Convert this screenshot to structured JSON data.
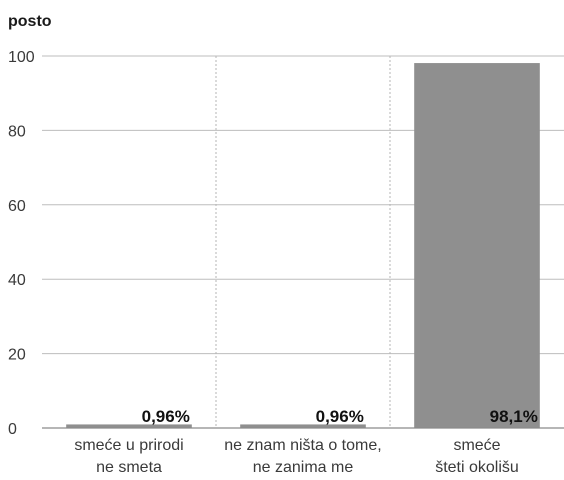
{
  "chart_data": {
    "type": "bar",
    "ylabel": "posto",
    "xlabel": "",
    "ylim": [
      0,
      100
    ],
    "yticks": [
      "0",
      "20",
      "40",
      "60",
      "80",
      "100"
    ],
    "grid": true,
    "categories": [
      [
        "smeće u prirodi",
        "ne smeta"
      ],
      [
        "ne znam ništa o tome,",
        "ne zanima me"
      ],
      [
        "smeće",
        "šteti okolišu"
      ]
    ],
    "values": [
      0.96,
      0.96,
      98.1
    ],
    "data_labels": [
      "0,96%",
      "0,96%",
      "98,1%"
    ],
    "colors": {
      "bar": "#8f8f8f",
      "grid": "#bdbdbd",
      "divider": "#b5b5b5",
      "axis": "#8a8a8a"
    }
  }
}
